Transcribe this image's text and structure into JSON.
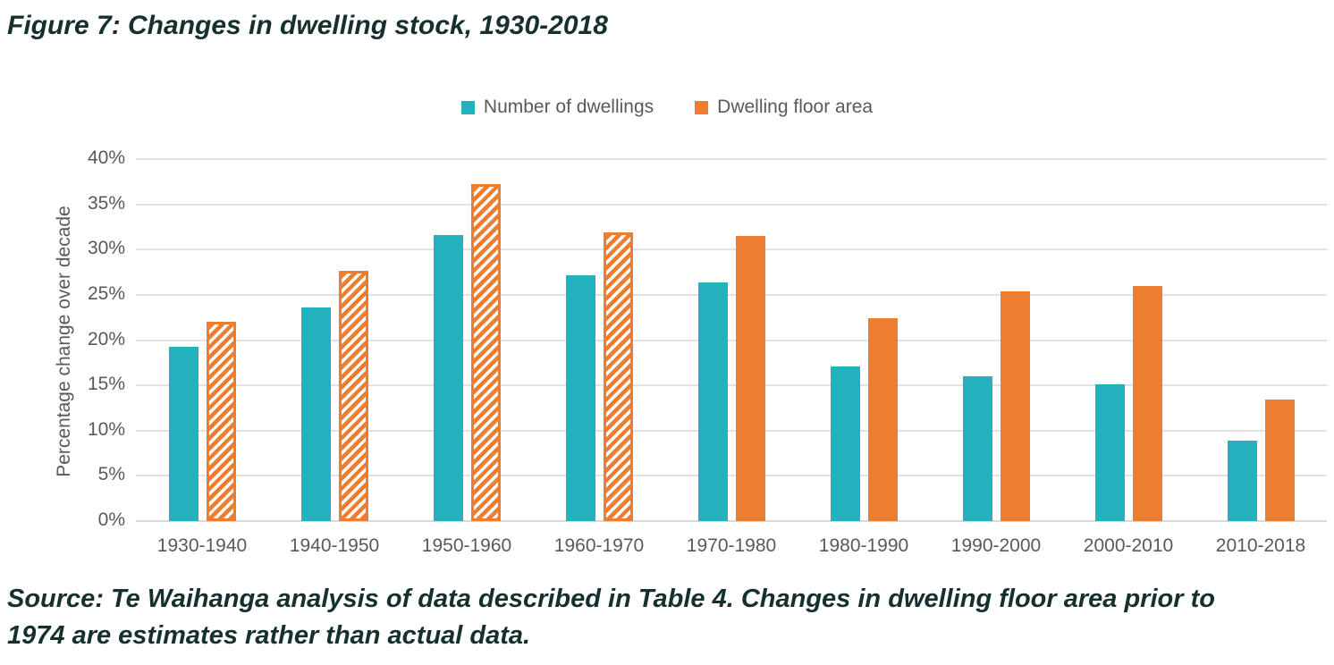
{
  "title": "Figure 7: Changes in dwelling stock, 1930-2018",
  "legend": {
    "items": [
      {
        "label": "Number of dwellings",
        "color": "#23B2BD",
        "swatch_style": "solid"
      },
      {
        "label": "Dwelling floor area",
        "color": "#ED7D31",
        "swatch_style": "solid"
      }
    ]
  },
  "source_note": {
    "line1": "Source: Te Waihanga analysis of data described in Table 4. Changes in dwelling floor area prior to",
    "line2": "1974 are estimates rather than actual data."
  },
  "chart_data": {
    "type": "bar",
    "title": "Figure 7: Changes in dwelling stock, 1930-2018",
    "categories": [
      "1930-1940",
      "1940-1950",
      "1950-1960",
      "1960-1970",
      "1970-1980",
      "1980-1990",
      "1990-2000",
      "2000-2010",
      "2010-2018"
    ],
    "series": [
      {
        "name": "Number of dwellings",
        "color": "#23B2BD",
        "values": [
          19.3,
          23.6,
          31.6,
          27.2,
          26.4,
          17.1,
          16.0,
          15.1,
          8.9
        ],
        "point_styles": [
          "solid",
          "solid",
          "solid",
          "solid",
          "solid",
          "solid",
          "solid",
          "solid",
          "solid"
        ]
      },
      {
        "name": "Dwelling floor area",
        "color": "#ED7D31",
        "values": [
          22.0,
          27.7,
          37.2,
          31.9,
          31.5,
          22.4,
          25.4,
          26.0,
          13.4
        ],
        "point_styles": [
          "hatched",
          "hatched",
          "hatched",
          "hatched",
          "solid",
          "solid",
          "solid",
          "solid",
          "solid"
        ]
      }
    ],
    "xlabel": "",
    "ylabel": "Percentage change over decade",
    "ylim": [
      0,
      40
    ],
    "ytick_step": 5,
    "ytick_labels": [
      "0%",
      "5%",
      "10%",
      "15%",
      "20%",
      "25%",
      "30%",
      "35%",
      "40%"
    ],
    "grid": "horizontal",
    "legend_position": "top-center",
    "note": "Hatched orange bars are estimates (decades prior to 1974)"
  },
  "colors": {
    "teal": "#23B2BD",
    "orange": "#ED7D31",
    "axis-text": "#595959",
    "gridline": "#E2E2E2",
    "axis-line": "#D9D9D9",
    "dark-text": "#15302E"
  }
}
